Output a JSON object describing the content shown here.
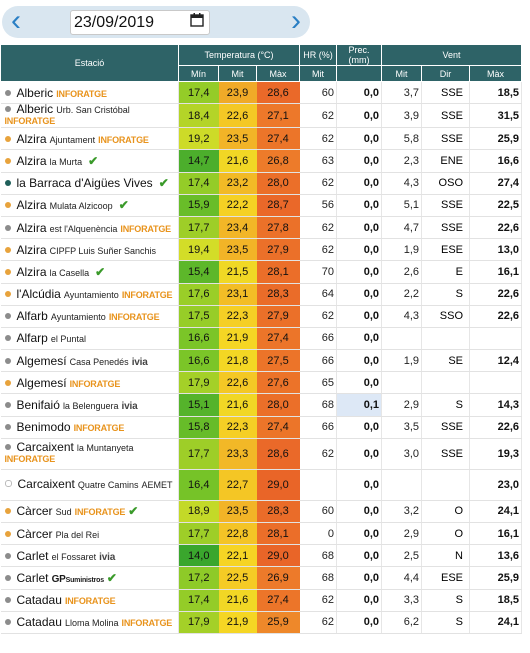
{
  "date": "23/09/2019",
  "headers": {
    "station": "Estació",
    "temperature": "Temperatura (°C)",
    "humidity": "HR (%)",
    "precipitation": "Prec. (mm)",
    "wind": "Vent",
    "t_min": "Mín",
    "t_avg": "Mit",
    "t_max": "Màx",
    "hr_avg": "Mit",
    "w_avg": "Mit",
    "w_dir": "Dir",
    "w_max": "Màx"
  },
  "colors": {
    "header_bg": "#2e6367",
    "dot_gray": "#8c8c8c",
    "dot_orange": "#e8a33c",
    "dot_teal": "#1f5f5a",
    "brand_orange": "#e8931c",
    "check_green": "#3a9a2a"
  },
  "rows": [
    {
      "dot": "gray",
      "name": "Alberic",
      "sub": "",
      "brand": "INFORATGE",
      "btype": "inforatge",
      "check": false,
      "tmin": "17,4",
      "tavg": "23,9",
      "tmax": "28,6",
      "hr": "60",
      "prec": "0,0",
      "wavg": "3,7",
      "wdir": "SSE",
      "wmax": "18,5"
    },
    {
      "dot": "gray",
      "name": "Alberic",
      "sub": "Urb. San Cristóbal",
      "brand": "INFORATGE",
      "btype": "inforatge",
      "check": false,
      "wrap": true,
      "tmin": "18,4",
      "tavg": "22,6",
      "tmax": "27,1",
      "hr": "62",
      "prec": "0,0",
      "wavg": "3,9",
      "wdir": "SSE",
      "wmax": "31,5"
    },
    {
      "dot": "orange",
      "name": "Alzira",
      "sub": "Ajuntament",
      "brand": "INFORATGE",
      "btype": "inforatge",
      "check": false,
      "tmin": "19,2",
      "tavg": "23,5",
      "tmax": "27,4",
      "hr": "62",
      "prec": "0,0",
      "wavg": "5,8",
      "wdir": "SSE",
      "wmax": "25,9"
    },
    {
      "dot": "orange",
      "name": "Alzira",
      "sub": "la Murta",
      "brand": "",
      "btype": "",
      "check": true,
      "tmin": "14,7",
      "tavg": "21,6",
      "tmax": "26,8",
      "hr": "63",
      "prec": "0,0",
      "wavg": "2,3",
      "wdir": "ENE",
      "wmax": "16,6"
    },
    {
      "dot": "teal",
      "name": "la Barraca d'Aigües Vives",
      "sub": "",
      "brand": "",
      "btype": "",
      "check": true,
      "tmin": "17,4",
      "tavg": "23,2",
      "tmax": "28,0",
      "hr": "62",
      "prec": "0,0",
      "wavg": "4,3",
      "wdir": "OSO",
      "wmax": "27,4"
    },
    {
      "dot": "orange",
      "name": "Alzira",
      "sub": "Mulata Alzicoop",
      "brand": "",
      "btype": "",
      "check": true,
      "tmin": "15,9",
      "tavg": "22,2",
      "tmax": "28,7",
      "hr": "56",
      "prec": "0,0",
      "wavg": "5,1",
      "wdir": "SSE",
      "wmax": "22,5"
    },
    {
      "dot": "gray",
      "name": "Alzira",
      "sub": "est l'Alquenència",
      "brand": "INFORATGE",
      "btype": "inforatge",
      "check": false,
      "tmin": "17,7",
      "tavg": "23,4",
      "tmax": "27,8",
      "hr": "62",
      "prec": "0,0",
      "wavg": "4,7",
      "wdir": "SSE",
      "wmax": "22,6"
    },
    {
      "dot": "orange",
      "name": "Alzira",
      "sub": "CIPFP Luis Suñer Sanchis",
      "brand": "",
      "btype": "",
      "check": false,
      "tmin": "19,4",
      "tavg": "23,5",
      "tmax": "27,9",
      "hr": "62",
      "prec": "0,0",
      "wavg": "1,9",
      "wdir": "ESE",
      "wmax": "13,0"
    },
    {
      "dot": "orange",
      "name": "Alzira",
      "sub": "la Casella",
      "brand": "",
      "btype": "",
      "check": true,
      "tmin": "15,4",
      "tavg": "21,5",
      "tmax": "28,1",
      "hr": "70",
      "prec": "0,0",
      "wavg": "2,6",
      "wdir": "E",
      "wmax": "16,1"
    },
    {
      "dot": "orange",
      "name": "l'Alcúdia",
      "sub": "Ayuntamiento",
      "brand": "INFORATGE",
      "btype": "inforatge",
      "check": false,
      "tmin": "17,6",
      "tavg": "23,1",
      "tmax": "28,3",
      "hr": "64",
      "prec": "0,0",
      "wavg": "2,2",
      "wdir": "S",
      "wmax": "22,6"
    },
    {
      "dot": "gray",
      "name": "Alfarb",
      "sub": "Ayuntamiento",
      "brand": "INFORATGE",
      "btype": "inforatge",
      "check": false,
      "tmin": "17,5",
      "tavg": "22,3",
      "tmax": "27,9",
      "hr": "62",
      "prec": "0,0",
      "wavg": "4,3",
      "wdir": "SSO",
      "wmax": "22,6"
    },
    {
      "dot": "gray",
      "name": "Alfarp",
      "sub": "el Puntal",
      "brand": "",
      "btype": "",
      "check": false,
      "tmin": "16,6",
      "tavg": "21,9",
      "tmax": "27,4",
      "hr": "66",
      "prec": "0,0",
      "wavg": "",
      "wdir": "",
      "wmax": ""
    },
    {
      "dot": "gray",
      "name": "Algemesí",
      "sub": "Casa Penedés",
      "brand": "ivia",
      "btype": "ivia",
      "check": false,
      "tmin": "16,6",
      "tavg": "21,8",
      "tmax": "27,5",
      "hr": "66",
      "prec": "0,0",
      "wavg": "1,9",
      "wdir": "SE",
      "wmax": "12,4"
    },
    {
      "dot": "orange",
      "name": "Algemesí",
      "sub": "",
      "brand": "INFORATGE",
      "btype": "inforatge",
      "check": false,
      "tmin": "17,9",
      "tavg": "22,6",
      "tmax": "27,6",
      "hr": "65",
      "prec": "0,0",
      "wavg": "",
      "wdir": "",
      "wmax": ""
    },
    {
      "dot": "gray",
      "name": "Benifaió",
      "sub": "la Belenguera",
      "brand": "ivia",
      "btype": "ivia",
      "check": false,
      "tmin": "15,1",
      "tavg": "21,6",
      "tmax": "28,0",
      "hr": "68",
      "prec": "0,1",
      "precHi": true,
      "wavg": "2,9",
      "wdir": "S",
      "wmax": "14,3"
    },
    {
      "dot": "gray",
      "name": "Benimodo",
      "sub": "",
      "brand": "INFORATGE",
      "btype": "inforatge",
      "check": false,
      "tmin": "15,8",
      "tavg": "22,3",
      "tmax": "27,4",
      "hr": "66",
      "prec": "0,0",
      "wavg": "3,5",
      "wdir": "SSE",
      "wmax": "22,6"
    },
    {
      "dot": "gray",
      "name": "Carcaixent",
      "sub": "la Muntanyeta",
      "brand": "INFORATGE",
      "btype": "inforatge",
      "check": false,
      "wrap": true,
      "tall": true,
      "tmin": "17,7",
      "tavg": "23,3",
      "tmax": "28,6",
      "hr": "62",
      "prec": "0,0",
      "wavg": "3,0",
      "wdir": "SSE",
      "wmax": "19,3"
    },
    {
      "dot": "none",
      "name": "Carcaixent",
      "sub": "Quatre Camins",
      "brand": "AEMET",
      "btype": "aemet",
      "check": false,
      "wrap": true,
      "tall": true,
      "tmin": "16,4",
      "tavg": "22,7",
      "tmax": "29,0",
      "hr": "",
      "prec": "0,0",
      "wavg": "",
      "wdir": "",
      "wmax": "23,0"
    },
    {
      "dot": "orange",
      "name": "Càrcer",
      "sub": "Sud",
      "brand": "INFORATGE",
      "btype": "inforatge",
      "check": true,
      "tmin": "18,9",
      "tavg": "23,5",
      "tmax": "28,3",
      "hr": "60",
      "prec": "0,0",
      "wavg": "3,2",
      "wdir": "O",
      "wmax": "24,1"
    },
    {
      "dot": "orange",
      "name": "Càrcer",
      "sub": "Pla del Rei",
      "brand": "",
      "btype": "",
      "check": false,
      "tmin": "17,7",
      "tavg": "22,8",
      "tmax": "28,1",
      "hr": "0",
      "prec": "0,0",
      "wavg": "2,9",
      "wdir": "O",
      "wmax": "16,1"
    },
    {
      "dot": "gray",
      "name": "Carlet",
      "sub": "el Fossaret",
      "brand": "ivia",
      "btype": "ivia",
      "check": false,
      "tmin": "14,0",
      "tavg": "22,1",
      "tmax": "29,0",
      "hr": "68",
      "prec": "0,0",
      "wavg": "2,5",
      "wdir": "N",
      "wmax": "13,6"
    },
    {
      "dot": "gray",
      "name": "Carlet",
      "sub": "",
      "brand": "GP",
      "brandsub": "Suministros",
      "btype": "gp",
      "check": true,
      "tmin": "17,2",
      "tavg": "22,5",
      "tmax": "26,9",
      "hr": "68",
      "prec": "0,0",
      "wavg": "4,4",
      "wdir": "ESE",
      "wmax": "25,9"
    },
    {
      "dot": "gray",
      "name": "Catadau",
      "sub": "",
      "brand": "INFORATGE",
      "btype": "inforatge",
      "check": false,
      "tmin": "17,4",
      "tavg": "21,6",
      "tmax": "27,4",
      "hr": "62",
      "prec": "0,0",
      "wavg": "3,3",
      "wdir": "S",
      "wmax": "18,5"
    },
    {
      "dot": "gray",
      "name": "Catadau",
      "sub": "Lloma Molina",
      "brand": "INFORATGE",
      "btype": "inforatge",
      "check": false,
      "tmin": "17,9",
      "tavg": "21,9",
      "tmax": "25,9",
      "hr": "62",
      "prec": "0,0",
      "wavg": "6,2",
      "wdir": "S",
      "wmax": "24,1"
    }
  ]
}
